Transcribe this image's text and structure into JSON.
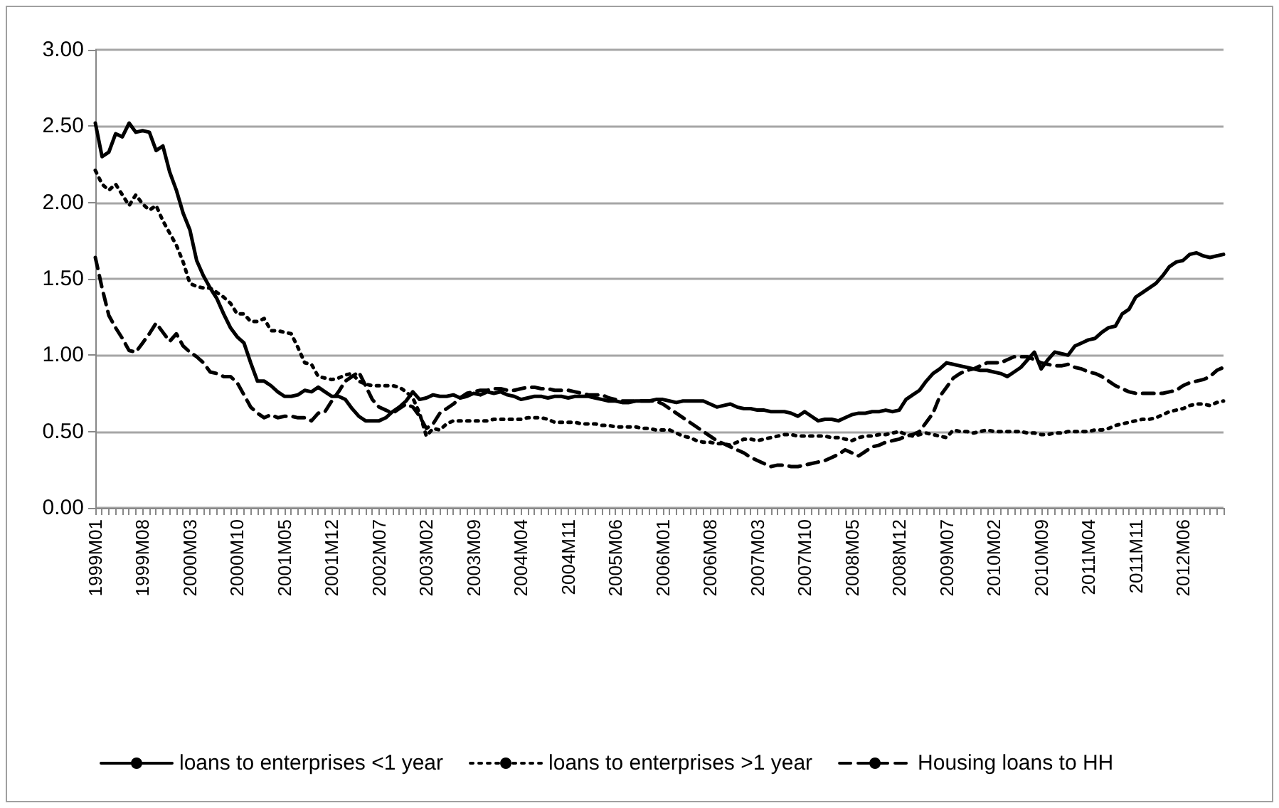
{
  "chart_data": {
    "type": "line",
    "categories": [
      "1999M01",
      null,
      null,
      null,
      null,
      null,
      null,
      "1999M08",
      null,
      null,
      null,
      null,
      null,
      null,
      "2000M03",
      null,
      null,
      null,
      null,
      null,
      null,
      "2000M10",
      null,
      null,
      null,
      null,
      null,
      null,
      "2001M05",
      null,
      null,
      null,
      null,
      null,
      null,
      "2001M12",
      null,
      null,
      null,
      null,
      null,
      null,
      "2002M07",
      null,
      null,
      null,
      null,
      null,
      null,
      "2003M02",
      null,
      null,
      null,
      null,
      null,
      null,
      "2003M09",
      null,
      null,
      null,
      null,
      null,
      null,
      "2004M04",
      null,
      null,
      null,
      null,
      null,
      null,
      "2004M11",
      null,
      null,
      null,
      null,
      null,
      null,
      "2005M06",
      null,
      null,
      null,
      null,
      null,
      null,
      "2006M01",
      null,
      null,
      null,
      null,
      null,
      null,
      "2006M08",
      null,
      null,
      null,
      null,
      null,
      null,
      "2007M03",
      null,
      null,
      null,
      null,
      null,
      null,
      "2007M10",
      null,
      null,
      null,
      null,
      null,
      null,
      "2008M05",
      null,
      null,
      null,
      null,
      null,
      null,
      "2008M12",
      null,
      null,
      null,
      null,
      null,
      null,
      "2009M07",
      null,
      null,
      null,
      null,
      null,
      null,
      "2010M02",
      null,
      null,
      null,
      null,
      null,
      null,
      "2010M09",
      null,
      null,
      null,
      null,
      null,
      null,
      "2011M04",
      null,
      null,
      null,
      null,
      null,
      null,
      "2011M11",
      null,
      null,
      null,
      null,
      null,
      null,
      "2012M06",
      null,
      null,
      null,
      null,
      null,
      null
    ],
    "series": [
      {
        "name": "loans to enterprises <1 year",
        "color": "#000000",
        "line_style": "solid",
        "values": [
          2.52,
          2.3,
          2.33,
          2.45,
          2.43,
          2.52,
          2.46,
          2.47,
          2.46,
          2.34,
          2.37,
          2.2,
          2.08,
          1.93,
          1.82,
          1.62,
          1.52,
          1.44,
          1.37,
          1.27,
          1.18,
          1.12,
          1.08,
          0.95,
          0.83,
          0.83,
          0.8,
          0.76,
          0.73,
          0.73,
          0.74,
          0.77,
          0.76,
          0.79,
          0.76,
          0.73,
          0.73,
          0.71,
          0.65,
          0.6,
          0.57,
          0.57,
          0.57,
          0.59,
          0.63,
          0.66,
          0.7,
          0.76,
          0.71,
          0.72,
          0.74,
          0.73,
          0.73,
          0.74,
          0.72,
          0.73,
          0.75,
          0.74,
          0.76,
          0.75,
          0.76,
          0.74,
          0.73,
          0.71,
          0.72,
          0.73,
          0.73,
          0.72,
          0.73,
          0.73,
          0.72,
          0.73,
          0.73,
          0.73,
          0.72,
          0.71,
          0.7,
          0.7,
          0.69,
          0.69,
          0.7,
          0.7,
          0.7,
          0.71,
          0.71,
          0.7,
          0.69,
          0.7,
          0.7,
          0.7,
          0.7,
          0.68,
          0.66,
          0.67,
          0.68,
          0.66,
          0.65,
          0.65,
          0.64,
          0.64,
          0.63,
          0.63,
          0.63,
          0.62,
          0.6,
          0.63,
          0.6,
          0.57,
          0.58,
          0.58,
          0.57,
          0.59,
          0.61,
          0.62,
          0.62,
          0.63,
          0.63,
          0.64,
          0.63,
          0.64,
          0.71,
          0.74,
          0.77,
          0.83,
          0.88,
          0.91,
          0.95,
          0.94,
          0.93,
          0.92,
          0.91,
          0.9,
          0.9,
          0.89,
          0.88,
          0.86,
          0.89,
          0.92,
          0.97,
          1.02,
          0.91,
          0.97,
          1.02,
          1.01,
          1.0,
          1.06,
          1.08,
          1.1,
          1.11,
          1.15,
          1.18,
          1.19,
          1.27,
          1.3,
          1.38,
          1.41,
          1.44,
          1.47,
          1.52,
          1.58,
          1.61,
          1.62,
          1.66,
          1.67,
          1.65,
          1.64,
          1.65,
          1.66
        ]
      },
      {
        "name": "loans to enterprises >1 year",
        "color": "#000000",
        "line_style": "dotted",
        "values": [
          2.21,
          2.12,
          2.08,
          2.12,
          2.05,
          1.98,
          2.05,
          1.99,
          1.95,
          1.98,
          1.88,
          1.8,
          1.72,
          1.61,
          1.47,
          1.45,
          1.44,
          1.44,
          1.41,
          1.38,
          1.34,
          1.27,
          1.27,
          1.22,
          1.22,
          1.24,
          1.16,
          1.16,
          1.15,
          1.14,
          1.05,
          0.95,
          0.94,
          0.86,
          0.85,
          0.84,
          0.85,
          0.87,
          0.88,
          0.83,
          0.81,
          0.8,
          0.8,
          0.8,
          0.8,
          0.79,
          0.76,
          0.72,
          0.62,
          0.47,
          0.52,
          0.51,
          0.55,
          0.57,
          0.57,
          0.57,
          0.57,
          0.57,
          0.57,
          0.58,
          0.58,
          0.58,
          0.58,
          0.58,
          0.59,
          0.59,
          0.59,
          0.58,
          0.56,
          0.56,
          0.56,
          0.56,
          0.55,
          0.55,
          0.55,
          0.54,
          0.54,
          0.53,
          0.53,
          0.53,
          0.53,
          0.52,
          0.52,
          0.51,
          0.51,
          0.51,
          0.49,
          0.47,
          0.46,
          0.44,
          0.43,
          0.43,
          0.42,
          0.42,
          0.41,
          0.43,
          0.45,
          0.45,
          0.44,
          0.45,
          0.46,
          0.47,
          0.48,
          0.48,
          0.47,
          0.47,
          0.47,
          0.47,
          0.47,
          0.46,
          0.46,
          0.45,
          0.44,
          0.46,
          0.47,
          0.47,
          0.48,
          0.48,
          0.49,
          0.5,
          0.48,
          0.47,
          0.48,
          0.49,
          0.48,
          0.47,
          0.46,
          0.51,
          0.5,
          0.5,
          0.49,
          0.5,
          0.51,
          0.5,
          0.5,
          0.5,
          0.5,
          0.5,
          0.49,
          0.49,
          0.48,
          0.48,
          0.49,
          0.49,
          0.5,
          0.5,
          0.5,
          0.5,
          0.51,
          0.51,
          0.52,
          0.54,
          0.55,
          0.56,
          0.57,
          0.58,
          0.58,
          0.59,
          0.61,
          0.63,
          0.64,
          0.65,
          0.67,
          0.68,
          0.68,
          0.67,
          0.69,
          0.7
        ]
      },
      {
        "name": "Housing loans to HH",
        "color": "#000000",
        "line_style": "dashed",
        "values": [
          1.64,
          1.44,
          1.26,
          1.18,
          1.11,
          1.03,
          1.02,
          1.08,
          1.14,
          1.21,
          1.15,
          1.09,
          1.14,
          1.06,
          1.02,
          0.99,
          0.95,
          0.89,
          0.88,
          0.86,
          0.86,
          0.82,
          0.74,
          0.66,
          0.62,
          0.59,
          0.61,
          0.59,
          0.6,
          0.6,
          0.59,
          0.59,
          0.57,
          0.62,
          0.63,
          0.7,
          0.76,
          0.83,
          0.86,
          0.89,
          0.8,
          0.71,
          0.66,
          0.64,
          0.62,
          0.65,
          0.68,
          0.66,
          0.6,
          0.52,
          0.55,
          0.62,
          0.65,
          0.68,
          0.72,
          0.75,
          0.76,
          0.77,
          0.77,
          0.78,
          0.78,
          0.77,
          0.77,
          0.78,
          0.79,
          0.79,
          0.78,
          0.78,
          0.77,
          0.77,
          0.77,
          0.76,
          0.75,
          0.74,
          0.74,
          0.74,
          0.72,
          0.71,
          0.7,
          0.7,
          0.7,
          0.7,
          0.7,
          0.7,
          0.68,
          0.65,
          0.62,
          0.59,
          0.56,
          0.53,
          0.5,
          0.47,
          0.44,
          0.42,
          0.4,
          0.38,
          0.36,
          0.33,
          0.31,
          0.29,
          0.27,
          0.28,
          0.28,
          0.27,
          0.27,
          0.28,
          0.29,
          0.3,
          0.31,
          0.33,
          0.35,
          0.38,
          0.36,
          0.34,
          0.37,
          0.4,
          0.41,
          0.43,
          0.44,
          0.45,
          0.47,
          0.48,
          0.5,
          0.56,
          0.62,
          0.73,
          0.79,
          0.85,
          0.88,
          0.9,
          0.91,
          0.93,
          0.95,
          0.95,
          0.95,
          0.97,
          0.99,
          0.99,
          0.99,
          0.97,
          0.95,
          0.94,
          0.93,
          0.93,
          0.94,
          0.92,
          0.91,
          0.89,
          0.88,
          0.86,
          0.83,
          0.8,
          0.78,
          0.76,
          0.75,
          0.75,
          0.75,
          0.75,
          0.75,
          0.76,
          0.77,
          0.8,
          0.82,
          0.83,
          0.84,
          0.86,
          0.9,
          0.92
        ]
      }
    ],
    "ylim": [
      0,
      3
    ],
    "yticks": [
      {
        "value": 0,
        "label": "0.00"
      },
      {
        "value": 0.5,
        "label": "0.50"
      },
      {
        "value": 1,
        "label": "1.00"
      },
      {
        "value": 1.5,
        "label": "1.50"
      },
      {
        "value": 2,
        "label": "2.00"
      },
      {
        "value": 2.5,
        "label": "2.50"
      },
      {
        "value": 3,
        "label": "3.00"
      }
    ],
    "grid": "y",
    "legend": "bottom",
    "marker": "none"
  }
}
